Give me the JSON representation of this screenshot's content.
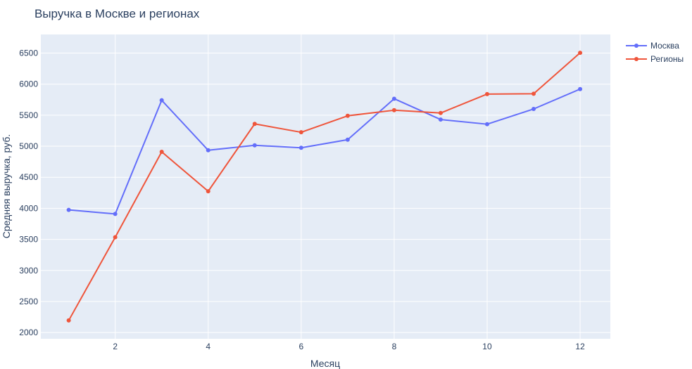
{
  "chart_data": {
    "type": "line",
    "title": "Выручка в Москве и регионах",
    "xlabel": "Месяц",
    "ylabel": "Средняя выручка, руб.",
    "x": [
      1,
      2,
      3,
      4,
      5,
      6,
      7,
      8,
      9,
      10,
      11,
      12
    ],
    "xlim": [
      0.4,
      12.65
    ],
    "ylim": [
      1900,
      6800
    ],
    "xticks": [
      2,
      4,
      6,
      8,
      10,
      12
    ],
    "yticks": [
      2000,
      2500,
      3000,
      3500,
      4000,
      4500,
      5000,
      5500,
      6000,
      6500
    ],
    "grid": true,
    "legend_position": "top-right",
    "background": "#e5ecf6",
    "series": [
      {
        "name": "Москва",
        "color": "#636efa",
        "values": [
          3975,
          3910,
          5740,
          4935,
          5015,
          4975,
          5105,
          5765,
          5430,
          5355,
          5600,
          5920
        ]
      },
      {
        "name": "Регионы",
        "color": "#ef553b",
        "values": [
          2195,
          3535,
          4910,
          4275,
          5360,
          5225,
          5490,
          5580,
          5535,
          5840,
          5845,
          6505
        ]
      }
    ]
  }
}
